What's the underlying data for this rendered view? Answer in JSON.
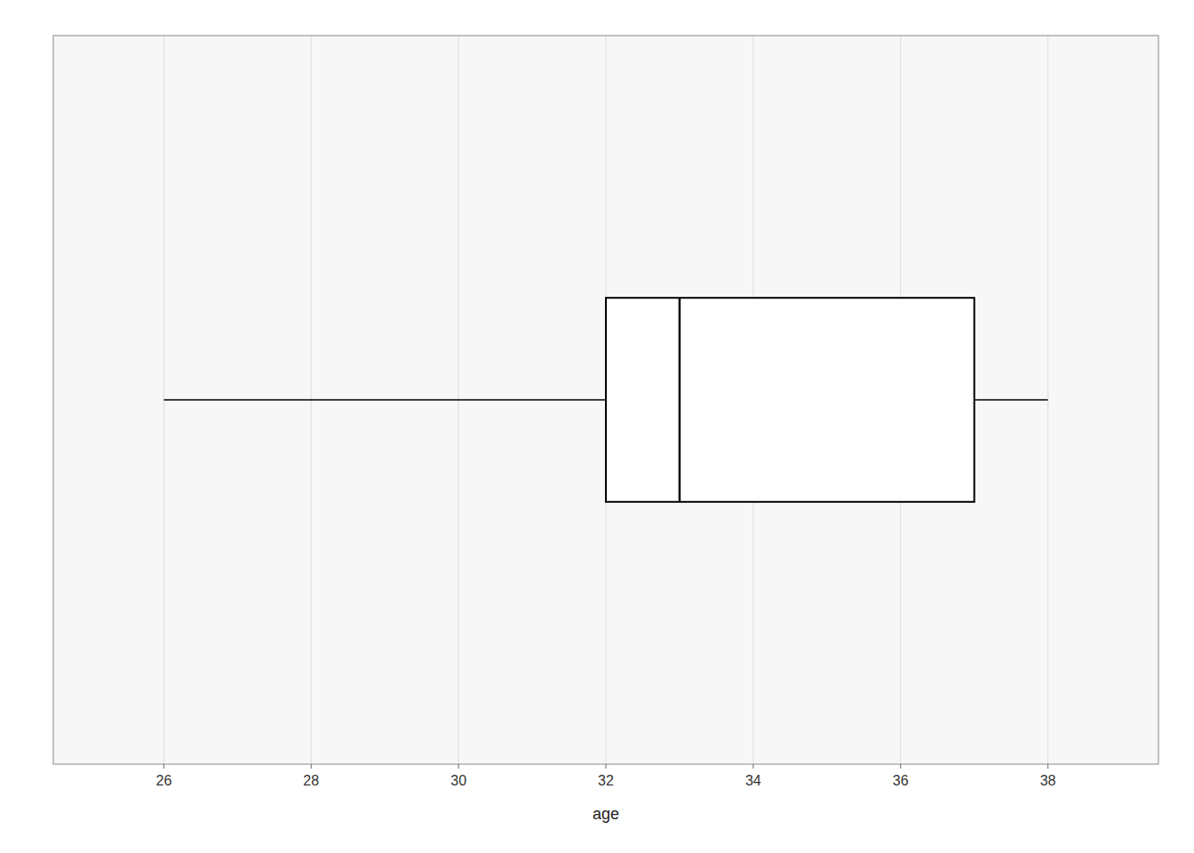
{
  "chart_data": {
    "type": "box",
    "orientation": "horizontal",
    "xlabel": "age",
    "whisker_low": 26.0,
    "q1": 32.0,
    "median": 33.0,
    "q3": 37.0,
    "whisker_high": 38.0,
    "color": "#ffffff",
    "xlim": [
      24.5,
      39.5
    ],
    "xticks": [
      26,
      28,
      30,
      32,
      34,
      36,
      38
    ],
    "grid": true,
    "tick_labels": "x"
  }
}
